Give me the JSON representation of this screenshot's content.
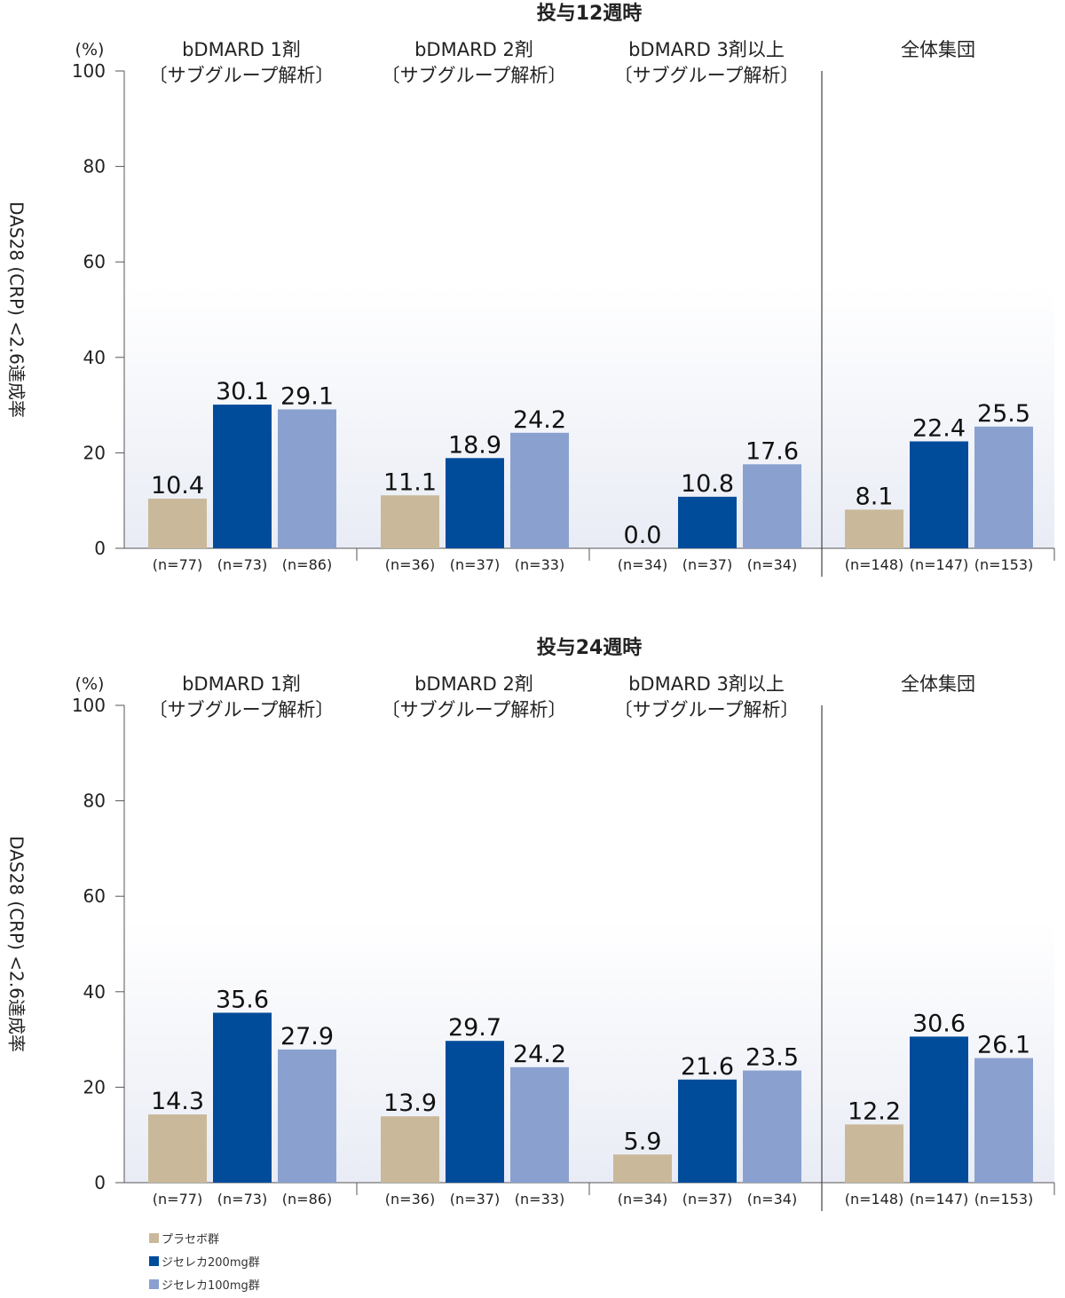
{
  "chart_data": [
    {
      "type": "bar",
      "title": "投与12週時",
      "ylabel": "DAS28 (CRP) <2.6達成率",
      "yunit": "(%)",
      "ylim": [
        0,
        100
      ],
      "yticks": [
        0,
        20,
        40,
        60,
        80,
        100
      ],
      "groups": [
        {
          "name": "bDMARD 1剤",
          "subtitle": "〔サブグループ解析〕",
          "values": [
            10.4,
            30.1,
            29.1
          ],
          "value_labels": [
            "10.4",
            "30.1",
            "29.1"
          ],
          "n": [
            "(n=77)",
            "(n=73)",
            "(n=86)"
          ]
        },
        {
          "name": "bDMARD 2剤",
          "subtitle": "〔サブグループ解析〕",
          "values": [
            11.1,
            18.9,
            24.2
          ],
          "value_labels": [
            "11.1",
            "18.9",
            "24.2"
          ],
          "n": [
            "(n=36)",
            "(n=37)",
            "(n=33)"
          ]
        },
        {
          "name": "bDMARD 3剤以上",
          "subtitle": "〔サブグループ解析〕",
          "values": [
            0.0,
            10.8,
            17.6
          ],
          "value_labels": [
            "0.0",
            "10.8",
            "17.6"
          ],
          "n": [
            "(n=34)",
            "(n=37)",
            "(n=34)"
          ]
        },
        {
          "name": "全体集団",
          "subtitle": "",
          "values": [
            8.1,
            22.4,
            25.5
          ],
          "value_labels": [
            "8.1",
            "22.4",
            "25.5"
          ],
          "n": [
            "(n=148)",
            "(n=147)",
            "(n=153)"
          ]
        }
      ]
    },
    {
      "type": "bar",
      "title": "投与24週時",
      "ylabel": "DAS28 (CRP) <2.6達成率",
      "yunit": "(%)",
      "ylim": [
        0,
        100
      ],
      "yticks": [
        0,
        20,
        40,
        60,
        80,
        100
      ],
      "groups": [
        {
          "name": "bDMARD 1剤",
          "subtitle": "〔サブグループ解析〕",
          "values": [
            14.3,
            35.6,
            27.9
          ],
          "value_labels": [
            "14.3",
            "35.6",
            "27.9"
          ],
          "n": [
            "(n=77)",
            "(n=73)",
            "(n=86)"
          ]
        },
        {
          "name": "bDMARD 2剤",
          "subtitle": "〔サブグループ解析〕",
          "values": [
            13.9,
            29.7,
            24.2
          ],
          "value_labels": [
            "13.9",
            "29.7",
            "24.2"
          ],
          "n": [
            "(n=36)",
            "(n=37)",
            "(n=33)"
          ]
        },
        {
          "name": "bDMARD 3剤以上",
          "subtitle": "〔サブグループ解析〕",
          "values": [
            5.9,
            21.6,
            23.5
          ],
          "value_labels": [
            "5.9",
            "21.6",
            "23.5"
          ],
          "n": [
            "(n=34)",
            "(n=37)",
            "(n=34)"
          ]
        },
        {
          "name": "全体集団",
          "subtitle": "",
          "values": [
            12.2,
            30.6,
            26.1
          ],
          "value_labels": [
            "12.2",
            "30.6",
            "26.1"
          ],
          "n": [
            "(n=148)",
            "(n=147)",
            "(n=153)"
          ]
        }
      ]
    }
  ],
  "legend": [
    {
      "label": "プラセボ群",
      "color": "#c9b99a"
    },
    {
      "label": "ジセレカ200mg群",
      "color": "#004c9b"
    },
    {
      "label": "ジセレカ100mg群",
      "color": "#8aa1cf"
    }
  ]
}
